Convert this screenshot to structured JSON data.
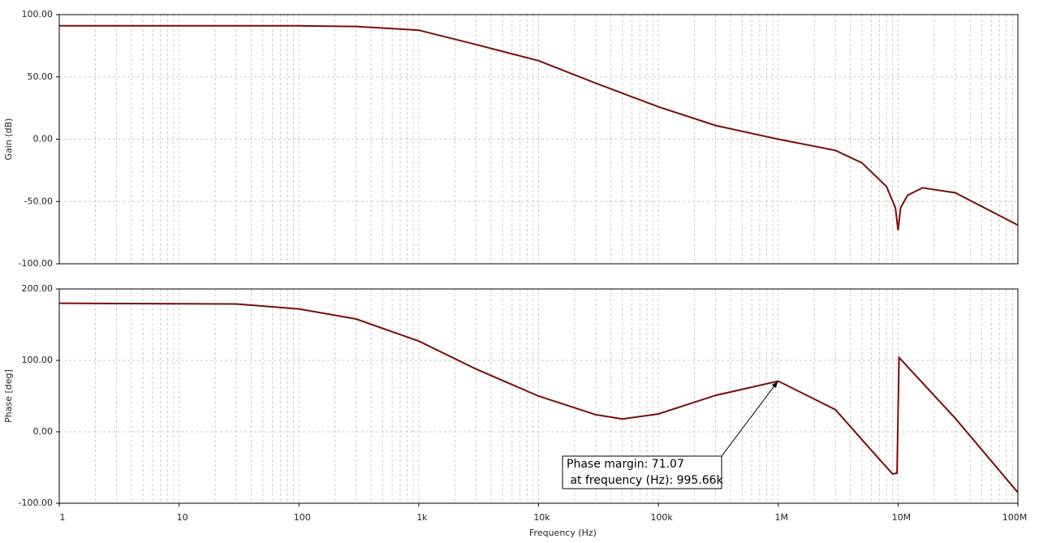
{
  "chart_data": [
    {
      "type": "line",
      "y_label": "Gain (dB)",
      "xscale": "log",
      "xlim": [
        1,
        100000000
      ],
      "ylim": [
        -100,
        100
      ],
      "yticks": [
        {
          "value": -100,
          "label": "-100.00"
        },
        {
          "value": -50,
          "label": "-50.00"
        },
        {
          "value": 0,
          "label": "0.00"
        },
        {
          "value": 50,
          "label": "50.00"
        },
        {
          "value": 100,
          "label": "100.00"
        }
      ],
      "grid": true,
      "series": [
        {
          "color": "#7a0c0c",
          "x": [
            1,
            100,
            300,
            1000,
            3000,
            10000,
            30000,
            100000,
            300000,
            1000000,
            3000000,
            5000000,
            8000000,
            9500000,
            10000000,
            10500000,
            12000000,
            16000000,
            30000000,
            100000000
          ],
          "values": [
            91,
            91,
            90.5,
            87.5,
            76,
            63,
            45,
            26,
            11,
            0,
            -9,
            -19,
            -38,
            -55,
            -73,
            -55,
            -45,
            -39,
            -43,
            -69
          ]
        }
      ]
    },
    {
      "type": "line",
      "y_label": "Phase [deg]",
      "x_label": "Frequency (Hz)",
      "xscale": "log",
      "xlim": [
        1,
        100000000
      ],
      "xticks": [
        1,
        10,
        100,
        {
          "value": 1000,
          "label": "1k"
        },
        {
          "value": 10000,
          "label": "10k"
        },
        {
          "value": 100000,
          "label": "100k"
        },
        {
          "value": 1000000,
          "label": "1M"
        },
        {
          "value": 10000000,
          "label": "10M"
        },
        {
          "value": 100000000,
          "label": "100M"
        }
      ],
      "ylim": [
        -100,
        200
      ],
      "yticks": [
        {
          "value": -100,
          "label": "-100.00"
        },
        {
          "value": 0,
          "label": "0.00"
        },
        {
          "value": 100,
          "label": "100.00"
        },
        {
          "value": 200,
          "label": "200.00"
        }
      ],
      "grid": true,
      "series": [
        {
          "color": "#7a0c0c",
          "x": [
            1,
            30,
            100,
            300,
            1000,
            3000,
            10000,
            30000,
            50000,
            100000,
            300000,
            1000000,
            3000000,
            6000000,
            9000000,
            9800000,
            10200000,
            30000000,
            100000000
          ],
          "values": [
            180,
            179,
            172,
            158,
            127,
            88,
            50,
            24,
            18,
            25,
            51,
            71.07,
            31,
            -26,
            -59,
            -58,
            104,
            19,
            -85
          ]
        }
      ],
      "annotation": {
        "lines": [
          "Phase margin: 71.07",
          " at frequency (Hz): 995.66k"
        ],
        "x": 995660,
        "y": 71.07
      }
    }
  ]
}
